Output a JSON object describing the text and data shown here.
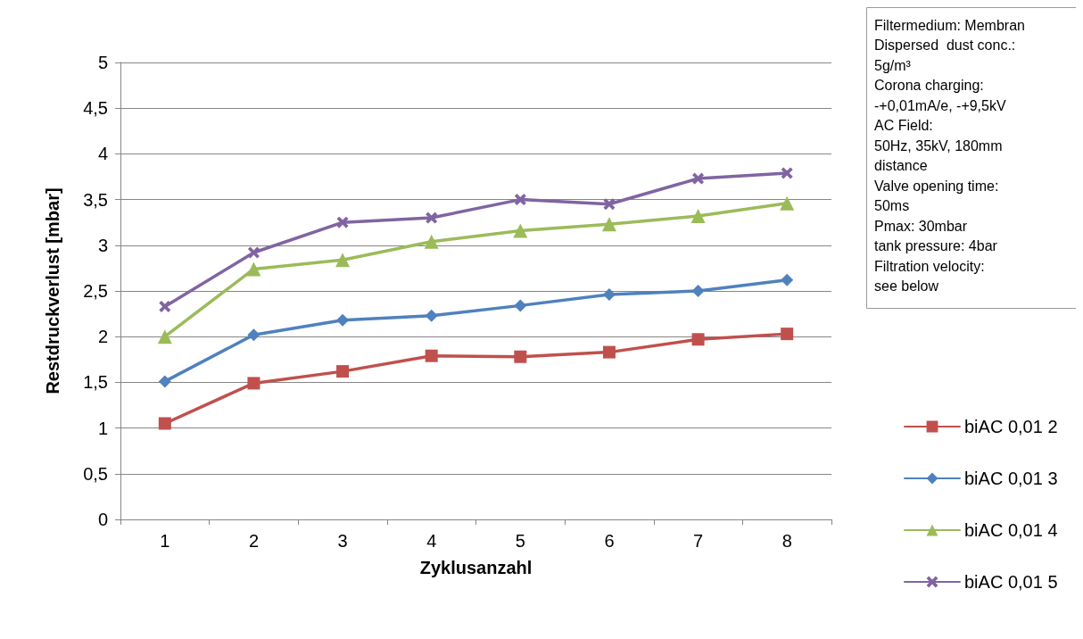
{
  "chart_data": {
    "type": "line",
    "xlabel": "Zyklusanzahl",
    "ylabel": "Restdruckverlust [mbar]",
    "categories": [
      "1",
      "2",
      "3",
      "4",
      "5",
      "6",
      "7",
      "8"
    ],
    "series": [
      {
        "name": "biAC 0,01 2",
        "color": "#c0504d",
        "marker": "square",
        "values": [
          1.05,
          1.49,
          1.62,
          1.79,
          1.78,
          1.83,
          1.97,
          2.03
        ]
      },
      {
        "name": "biAC 0,01 3",
        "color": "#4f81bd",
        "marker": "diamond",
        "values": [
          1.51,
          2.02,
          2.18,
          2.23,
          2.34,
          2.46,
          2.5,
          2.62
        ]
      },
      {
        "name": "biAC 0,01 4",
        "color": "#9bbb59",
        "marker": "triangle",
        "values": [
          2.0,
          2.74,
          2.84,
          3.04,
          3.16,
          3.23,
          3.32,
          3.46
        ]
      },
      {
        "name": "biAC 0,01 5",
        "color": "#8064a2",
        "marker": "cross",
        "values": [
          2.33,
          2.92,
          3.25,
          3.3,
          3.5,
          3.45,
          3.73,
          3.79
        ]
      }
    ],
    "ylim": [
      0,
      5
    ],
    "yticks": [
      0,
      {
        "value": 0.5,
        "label": "0,5"
      },
      1,
      {
        "value": 1.5,
        "label": "1,5"
      },
      2,
      {
        "value": 2.5,
        "label": "2,5"
      },
      3,
      {
        "value": 3.5,
        "label": "3,5"
      },
      4,
      {
        "value": 4.5,
        "label": "4,5"
      },
      5
    ],
    "grid": "y",
    "legend": "right",
    "line_style": "solid",
    "annotations": [
      "Filtermedium: Membran",
      "Dispersed  dust conc.:",
      "5g/m³",
      "Corona charging:",
      "-+0,01mA/e, -+9,5kV",
      "AC Field:",
      "50Hz, 35kV, 180mm",
      "distance",
      "Valve opening time:",
      "50ms",
      "Pmax: 30mbar",
      "tank pressure: 4bar",
      "Filtration velocity:",
      "see below"
    ]
  }
}
